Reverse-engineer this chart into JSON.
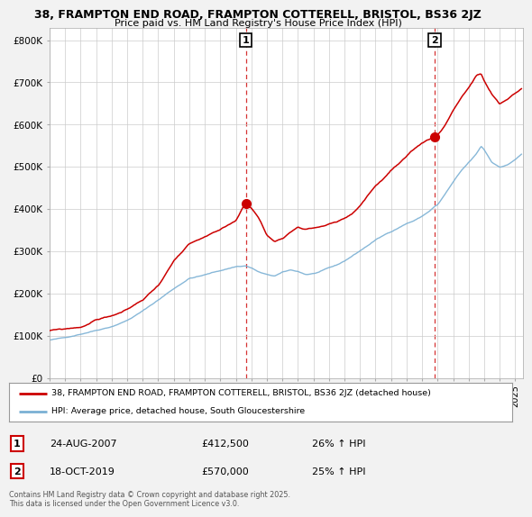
{
  "title_line1": "38, FRAMPTON END ROAD, FRAMPTON COTTERELL, BRISTOL, BS36 2JZ",
  "title_line2": "Price paid vs. HM Land Registry's House Price Index (HPI)",
  "ylabel_ticks": [
    "£0",
    "£100K",
    "£200K",
    "£300K",
    "£400K",
    "£500K",
    "£600K",
    "£700K",
    "£800K"
  ],
  "ytick_values": [
    0,
    100000,
    200000,
    300000,
    400000,
    500000,
    600000,
    700000,
    800000
  ],
  "ylim": [
    0,
    830000
  ],
  "xlim_start": 1995.0,
  "xlim_end": 2025.5,
  "red_color": "#cc0000",
  "blue_color": "#7ab0d4",
  "marker1_x": 2007.65,
  "marker1_y": 412500,
  "marker2_x": 2019.8,
  "marker2_y": 570000,
  "legend_label_red": "38, FRAMPTON END ROAD, FRAMPTON COTTERELL, BRISTOL, BS36 2JZ (detached house)",
  "legend_label_blue": "HPI: Average price, detached house, South Gloucestershire",
  "annotation1_label": "1",
  "annotation1_date": "24-AUG-2007",
  "annotation1_price": "£412,500",
  "annotation1_hpi": "26% ↑ HPI",
  "annotation2_label": "2",
  "annotation2_date": "18-OCT-2019",
  "annotation2_price": "£570,000",
  "annotation2_hpi": "25% ↑ HPI",
  "footer": "Contains HM Land Registry data © Crown copyright and database right 2025.\nThis data is licensed under the Open Government Licence v3.0.",
  "background_color": "#f2f2f2",
  "plot_bg_color": "#ffffff"
}
